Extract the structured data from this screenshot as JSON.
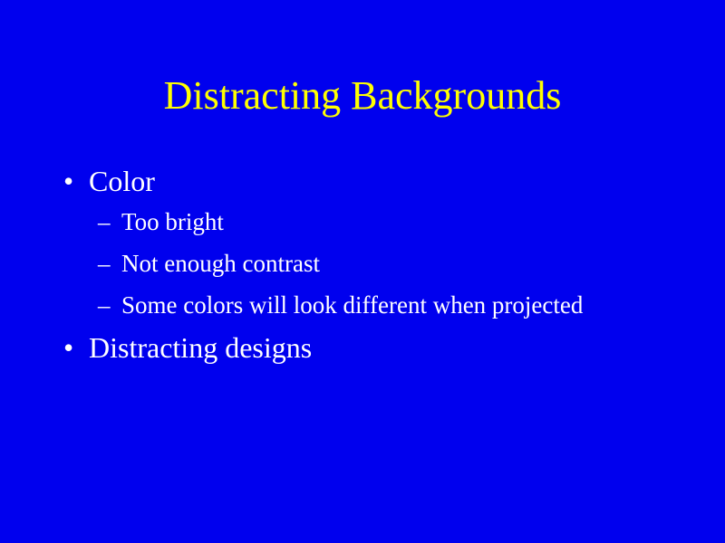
{
  "slide": {
    "background_color": "#0000ee",
    "title": "Distracting Backgrounds",
    "title_color": "#ffff00",
    "text_color": "#ffffff",
    "bullets": [
      {
        "marker": "•",
        "label": "Color",
        "subitems": [
          {
            "marker": "–",
            "label": "Too bright"
          },
          {
            "marker": "–",
            "label": "Not enough contrast"
          },
          {
            "marker": "–",
            "label": "Some colors will look different when projected"
          }
        ]
      },
      {
        "marker": "•",
        "label": "Distracting designs"
      }
    ]
  }
}
